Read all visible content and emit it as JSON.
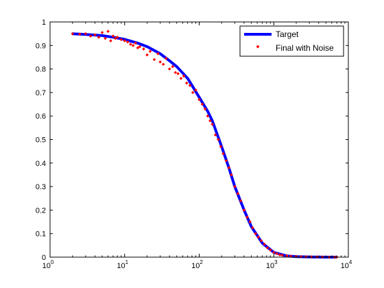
{
  "chart_data": {
    "type": "line",
    "title": "",
    "xlabel": "",
    "ylabel": "",
    "xscale": "log",
    "xlim": [
      1,
      10000
    ],
    "ylim": [
      0,
      1
    ],
    "grid": false,
    "legend_position": "top-right",
    "x_tick_labels": [
      {
        "base": "10",
        "exp": "0"
      },
      {
        "base": "10",
        "exp": "1"
      },
      {
        "base": "10",
        "exp": "2"
      },
      {
        "base": "10",
        "exp": "3"
      },
      {
        "base": "10",
        "exp": "4"
      }
    ],
    "y_tick_labels": [
      "0",
      "0.1",
      "0.2",
      "0.3",
      "0.4",
      "0.5",
      "0.6",
      "0.7",
      "0.8",
      "0.9",
      "1"
    ],
    "series": [
      {
        "name": "Target",
        "style": "line",
        "color": "#0000ff",
        "x": [
          2,
          3,
          5,
          7,
          10,
          15,
          20,
          30,
          40,
          50,
          70,
          100,
          130,
          150,
          200,
          250,
          300,
          400,
          500,
          700,
          1000,
          1500,
          2000,
          3000,
          5000,
          7000
        ],
        "y": [
          0.95,
          0.947,
          0.942,
          0.935,
          0.926,
          0.91,
          0.895,
          0.865,
          0.835,
          0.81,
          0.76,
          0.68,
          0.62,
          0.58,
          0.47,
          0.38,
          0.3,
          0.2,
          0.13,
          0.06,
          0.02,
          0.005,
          0.002,
          0.001,
          0.0,
          0.0
        ]
      },
      {
        "name": "Final with Noise",
        "style": "markers",
        "color": "#ff0000",
        "x": [
          2,
          2.5,
          3,
          3.5,
          4,
          4.5,
          5,
          5.5,
          6,
          6.5,
          7,
          7.5,
          8,
          9,
          10,
          11,
          12,
          13,
          14,
          15,
          16,
          18,
          20,
          22,
          25,
          28,
          30,
          33,
          36,
          40,
          44,
          48,
          52,
          57,
          62,
          68,
          75,
          82,
          90,
          100,
          110,
          120,
          130,
          140,
          150,
          165,
          180,
          195,
          210,
          230,
          250,
          270,
          300,
          330,
          360,
          400,
          440,
          480,
          520,
          570,
          620,
          680,
          750,
          820,
          900,
          1000,
          1100,
          1200,
          1300,
          1500,
          1700,
          2000,
          2300,
          2700,
          3200,
          3800,
          4500,
          5500,
          6500,
          7000
        ],
        "y": [
          0.95,
          0.948,
          0.95,
          0.94,
          0.945,
          0.935,
          0.955,
          0.93,
          0.96,
          0.92,
          0.94,
          0.93,
          0.935,
          0.925,
          0.92,
          0.915,
          0.905,
          0.9,
          0.91,
          0.89,
          0.895,
          0.885,
          0.86,
          0.875,
          0.84,
          0.865,
          0.83,
          0.82,
          0.845,
          0.8,
          0.81,
          0.785,
          0.78,
          0.76,
          0.77,
          0.74,
          0.73,
          0.7,
          0.71,
          0.67,
          0.65,
          0.63,
          0.6,
          0.58,
          0.565,
          0.52,
          0.5,
          0.47,
          0.44,
          0.41,
          0.38,
          0.35,
          0.3,
          0.27,
          0.24,
          0.2,
          0.17,
          0.15,
          0.125,
          0.1,
          0.085,
          0.07,
          0.055,
          0.04,
          0.03,
          0.02,
          0.015,
          0.01,
          0.008,
          0.006,
          0.004,
          0.003,
          0.002,
          0.002,
          0.001,
          0.001,
          0.001,
          0.0,
          0.0,
          0.0
        ]
      }
    ]
  }
}
